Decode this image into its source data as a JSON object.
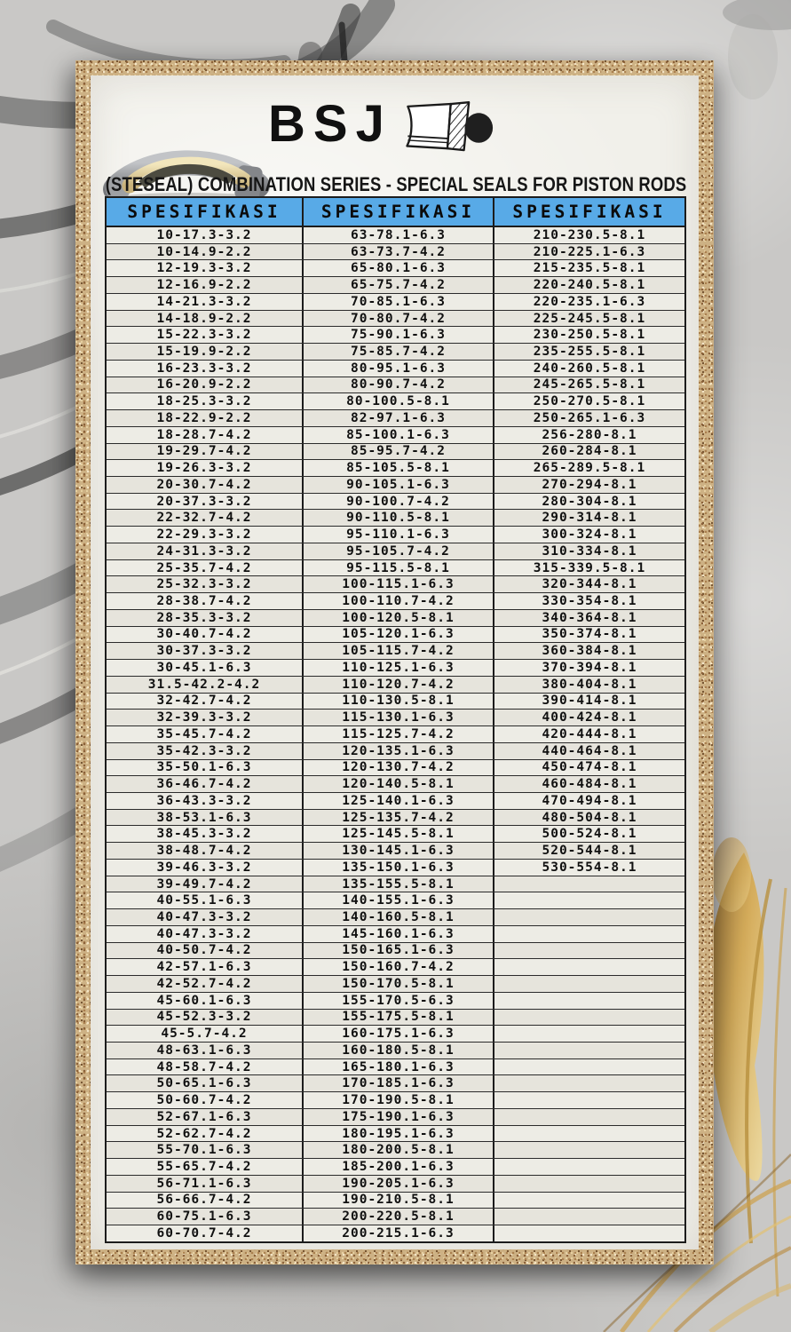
{
  "page": {
    "brand": "BSJ",
    "subtitle": "(STESEAL) COMBINATION SERIES - SPECIAL SEALS FOR PISTON RODS"
  },
  "colors": {
    "header_blue": "#58aae7",
    "paper": "#f1f0ea",
    "frame_gold": "#cdb184",
    "table_border": "#1c1c1c",
    "backdrop_grey": "#c9c8c6",
    "gold_foil": "#d6a94f"
  },
  "icons": {
    "seal_photo": "combination-seal-product-render",
    "brand_mark": "seal-cross-section-icon"
  },
  "table": {
    "row_count": 61,
    "columns": [
      {
        "header": "SPESIFIKASI",
        "values": [
          "10-17.3-3.2",
          "10-14.9-2.2",
          "12-19.3-3.2",
          "12-16.9-2.2",
          "14-21.3-3.2",
          "14-18.9-2.2",
          "15-22.3-3.2",
          "15-19.9-2.2",
          "16-23.3-3.2",
          "16-20.9-2.2",
          "18-25.3-3.2",
          "18-22.9-2.2",
          "18-28.7-4.2",
          "19-29.7-4.2",
          "19-26.3-3.2",
          "20-30.7-4.2",
          "20-37.3-3.2",
          "22-32.7-4.2",
          "22-29.3-3.2",
          "24-31.3-3.2",
          "25-35.7-4.2",
          "25-32.3-3.2",
          "28-38.7-4.2",
          "28-35.3-3.2",
          "30-40.7-4.2",
          "30-37.3-3.2",
          "30-45.1-6.3",
          "31.5-42.2-4.2",
          "32-42.7-4.2",
          "32-39.3-3.2",
          "35-45.7-4.2",
          "35-42.3-3.2",
          "35-50.1-6.3",
          "36-46.7-4.2",
          "36-43.3-3.2",
          "38-53.1-6.3",
          "38-45.3-3.2",
          "38-48.7-4.2",
          "39-46.3-3.2",
          "39-49.7-4.2",
          "40-55.1-6.3",
          "40-47.3-3.2",
          "40-47.3-3.2",
          "40-50.7-4.2",
          "42-57.1-6.3",
          "42-52.7-4.2",
          "45-60.1-6.3",
          "45-52.3-3.2",
          "45-5.7-4.2",
          "48-63.1-6.3",
          "48-58.7-4.2",
          "50-65.1-6.3",
          "50-60.7-4.2",
          "52-67.1-6.3",
          "52-62.7-4.2",
          "55-70.1-6.3",
          "55-65.7-4.2",
          "56-71.1-6.3",
          "56-66.7-4.2",
          "60-75.1-6.3",
          "60-70.7-4.2"
        ]
      },
      {
        "header": "SPESIFIKASI",
        "values": [
          "63-78.1-6.3",
          "63-73.7-4.2",
          "65-80.1-6.3",
          "65-75.7-4.2",
          "70-85.1-6.3",
          "70-80.7-4.2",
          "75-90.1-6.3",
          "75-85.7-4.2",
          "80-95.1-6.3",
          "80-90.7-4.2",
          "80-100.5-8.1",
          "82-97.1-6.3",
          "85-100.1-6.3",
          "85-95.7-4.2",
          "85-105.5-8.1",
          "90-105.1-6.3",
          "90-100.7-4.2",
          "90-110.5-8.1",
          "95-110.1-6.3",
          "95-105.7-4.2",
          "95-115.5-8.1",
          "100-115.1-6.3",
          "100-110.7-4.2",
          "100-120.5-8.1",
          "105-120.1-6.3",
          "105-115.7-4.2",
          "110-125.1-6.3",
          "110-120.7-4.2",
          "110-130.5-8.1",
          "115-130.1-6.3",
          "115-125.7-4.2",
          "120-135.1-6.3",
          "120-130.7-4.2",
          "120-140.5-8.1",
          "125-140.1-6.3",
          "125-135.7-4.2",
          "125-145.5-8.1",
          "130-145.1-6.3",
          "135-150.1-6.3",
          "135-155.5-8.1",
          "140-155.1-6.3",
          "140-160.5-8.1",
          "145-160.1-6.3",
          "150-165.1-6.3",
          "150-160.7-4.2",
          "150-170.5-8.1",
          "155-170.5-6.3",
          "155-175.5-8.1",
          "160-175.1-6.3",
          "160-180.5-8.1",
          "165-180.1-6.3",
          "170-185.1-6.3",
          "170-190.5-8.1",
          "175-190.1-6.3",
          "180-195.1-6.3",
          "180-200.5-8.1",
          "185-200.1-6.3",
          "190-205.1-6.3",
          "190-210.5-8.1",
          "200-220.5-8.1",
          "200-215.1-6.3"
        ]
      },
      {
        "header": "SPESIFIKASI",
        "values": [
          "210-230.5-8.1",
          "210-225.1-6.3",
          "215-235.5-8.1",
          "220-240.5-8.1",
          "220-235.1-6.3",
          "225-245.5-8.1",
          "230-250.5-8.1",
          "235-255.5-8.1",
          "240-260.5-8.1",
          "245-265.5-8.1",
          "250-270.5-8.1",
          "250-265.1-6.3",
          "256-280-8.1",
          "260-284-8.1",
          "265-289.5-8.1",
          "270-294-8.1",
          "280-304-8.1",
          "290-314-8.1",
          "300-324-8.1",
          "310-334-8.1",
          "315-339.5-8.1",
          "320-344-8.1",
          "330-354-8.1",
          "340-364-8.1",
          "350-374-8.1",
          "360-384-8.1",
          "370-394-8.1",
          "380-404-8.1",
          "390-414-8.1",
          "400-424-8.1",
          "420-444-8.1",
          "440-464-8.1",
          "450-474-8.1",
          "460-484-8.1",
          "470-494-8.1",
          "480-504-8.1",
          "500-524-8.1",
          "520-544-8.1",
          "530-554-8.1"
        ]
      }
    ]
  }
}
